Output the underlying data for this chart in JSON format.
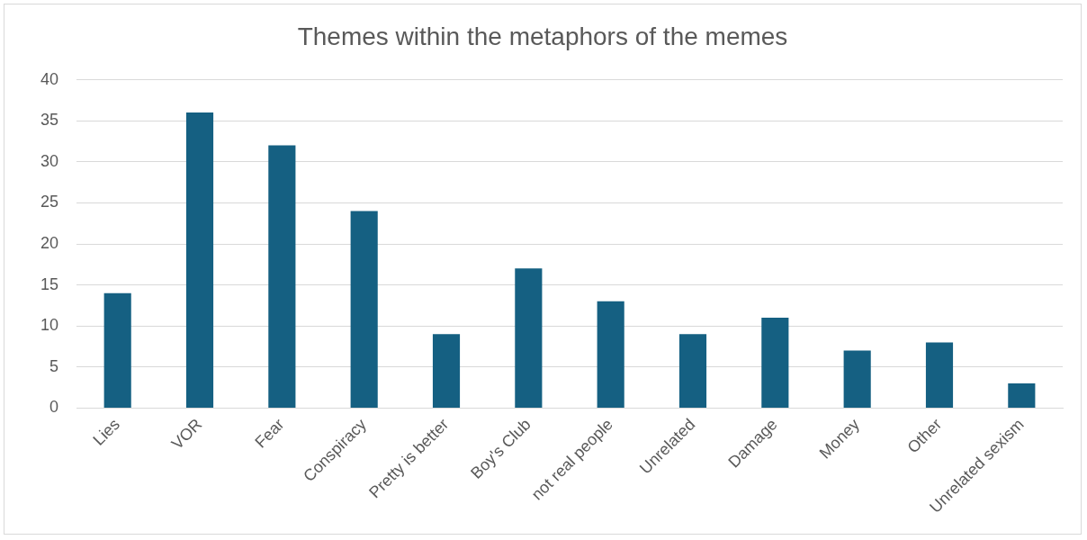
{
  "chart_data": {
    "type": "bar",
    "title": "Themes within the metaphors of the memes",
    "categories": [
      "Lies",
      "VOR",
      "Fear",
      "Conspiracy",
      "Pretty is better",
      "Boy's Club",
      "not real people",
      "Unrelated",
      "Damage",
      "Money",
      "Other",
      "Unrelated sexism"
    ],
    "values": [
      14,
      36,
      32,
      24,
      9,
      17,
      13,
      9,
      11,
      7,
      8,
      3
    ],
    "color": "#156082",
    "ylim": [
      0,
      40
    ],
    "yticks": [
      0,
      5,
      10,
      15,
      20,
      25,
      30,
      35,
      40
    ],
    "grid": "y"
  }
}
